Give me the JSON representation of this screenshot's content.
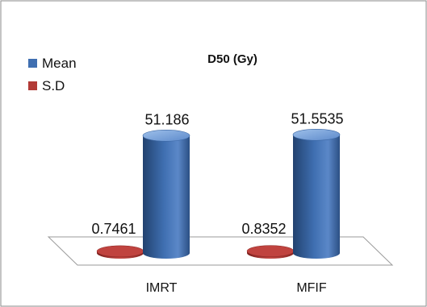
{
  "chart_data": {
    "type": "bar",
    "style": "3d-cylinder",
    "title": "D50 (Gy)",
    "categories": [
      "IMRT",
      "MFIF"
    ],
    "series": [
      {
        "name": "Mean",
        "values": [
          51.186,
          51.5535
        ],
        "labels": [
          "51.186",
          "51.5535"
        ],
        "color": "#3f6fb1"
      },
      {
        "name": "S.D",
        "values": [
          0.7461,
          0.8352
        ],
        "labels": [
          "0.7461",
          "0.8352"
        ],
        "color": "#b23a36"
      }
    ],
    "xlabel": "",
    "ylabel": "",
    "ylim": [
      0,
      52
    ],
    "grid": false,
    "legend_position": "top-left"
  },
  "colors": {
    "mean": "#3f6fb1",
    "mean_dark": "#22426f",
    "mean_light": "#86aee0",
    "sd": "#b23a36",
    "sd_dark": "#7a1f1c",
    "border": "#8a8a8a",
    "floor": "#9a9a9a"
  }
}
